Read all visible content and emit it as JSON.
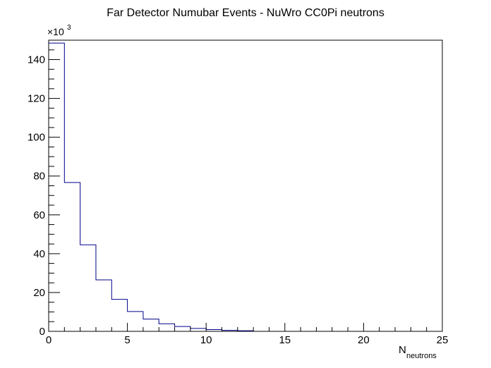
{
  "chart_data": {
    "type": "bar",
    "title": "Far Detector Numubar Events - NuWro CC0Pi neutrons",
    "xlabel_main": "N",
    "xlabel_sub": "neutrons",
    "ylabel": "",
    "y_multiplier_prefix": "×10",
    "y_multiplier_exponent": "3",
    "xlim": [
      0,
      25
    ],
    "ylim": [
      0,
      1.5
    ],
    "bin_width": 1,
    "x_ticks": [
      0,
      5,
      10,
      15,
      20,
      25
    ],
    "x_tick_labels": [
      "0",
      "5",
      "10",
      "15",
      "20",
      "25"
    ],
    "y_ticks": [
      0,
      20,
      40,
      60,
      80,
      100,
      120,
      140
    ],
    "y_tick_labels": [
      "0",
      "20",
      "40",
      "60",
      "80",
      "100",
      "120",
      "140"
    ],
    "bin_edges": [
      0,
      1,
      2,
      3,
      4,
      5,
      6,
      7,
      8,
      9,
      10,
      11,
      12,
      13
    ],
    "values": [
      148.5,
      76.7,
      44.6,
      26.5,
      16.5,
      10.2,
      6.3,
      3.9,
      2.5,
      1.5,
      0.9,
      0.5,
      0.3
    ],
    "grid": false,
    "line_color": "#00008b",
    "frame_color": "#000000"
  }
}
